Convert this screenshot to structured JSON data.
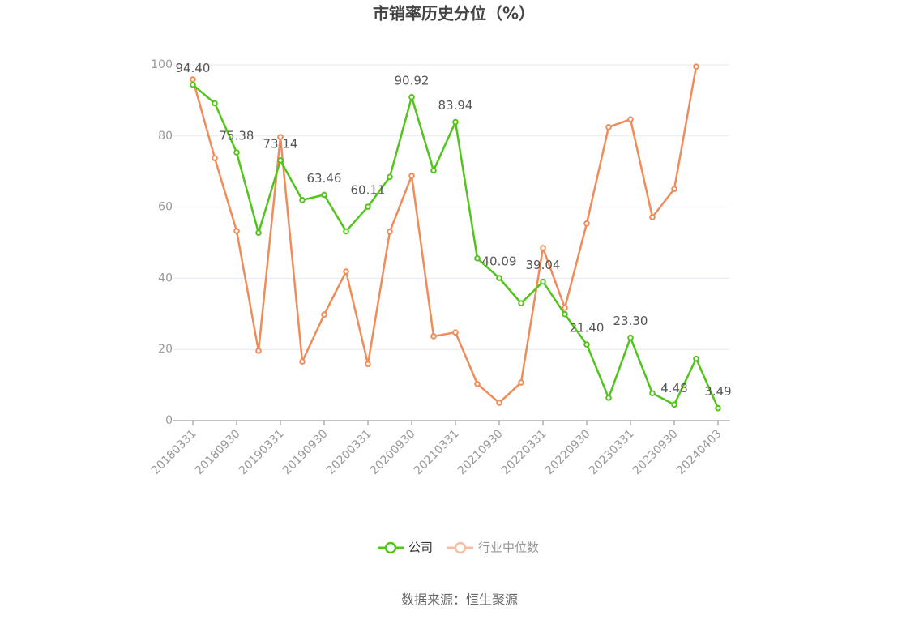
{
  "chart_data": {
    "type": "line",
    "title": "市销率历史分位（%）",
    "source": "数据来源：恒生聚源",
    "categories": [
      "20180331",
      null,
      "20180930",
      null,
      "20190331",
      null,
      "20190930",
      null,
      "20200331",
      null,
      "20200930",
      null,
      "20210331",
      null,
      "20210930",
      null,
      "20220331",
      null,
      "20220930",
      null,
      "20230331",
      null,
      "20230930",
      null,
      "20240403"
    ],
    "series": [
      {
        "name": "公司",
        "color": "#52c41a",
        "values": [
          94.4,
          89.2,
          75.38,
          52.8,
          73.14,
          62.0,
          63.46,
          53.2,
          60.11,
          68.5,
          90.92,
          70.3,
          83.94,
          45.6,
          40.09,
          33.0,
          39.04,
          29.9,
          21.4,
          6.4,
          23.3,
          7.7,
          4.48,
          17.4,
          3.49
        ],
        "value_labels": [
          "94.40",
          null,
          "75.38",
          null,
          "73.14",
          null,
          "63.46",
          null,
          "60.11",
          null,
          "90.92",
          null,
          "83.94",
          null,
          "40.09",
          null,
          "39.04",
          null,
          "21.40",
          null,
          "23.30",
          null,
          "4.48",
          null,
          "3.49"
        ]
      },
      {
        "name": "行业中位数",
        "color": "#f08c5a",
        "values": [
          95.9,
          73.8,
          53.3,
          19.6,
          79.7,
          16.6,
          29.8,
          41.9,
          15.9,
          53.1,
          68.8,
          23.7,
          24.8,
          10.3,
          5.0,
          10.7,
          48.5,
          31.7,
          55.4,
          82.5,
          84.7,
          57.2,
          65.1,
          99.5,
          null
        ]
      }
    ],
    "ylim": [
      0,
      100
    ],
    "yticks": [
      0,
      20,
      40,
      60,
      80,
      100
    ],
    "grid": true
  }
}
